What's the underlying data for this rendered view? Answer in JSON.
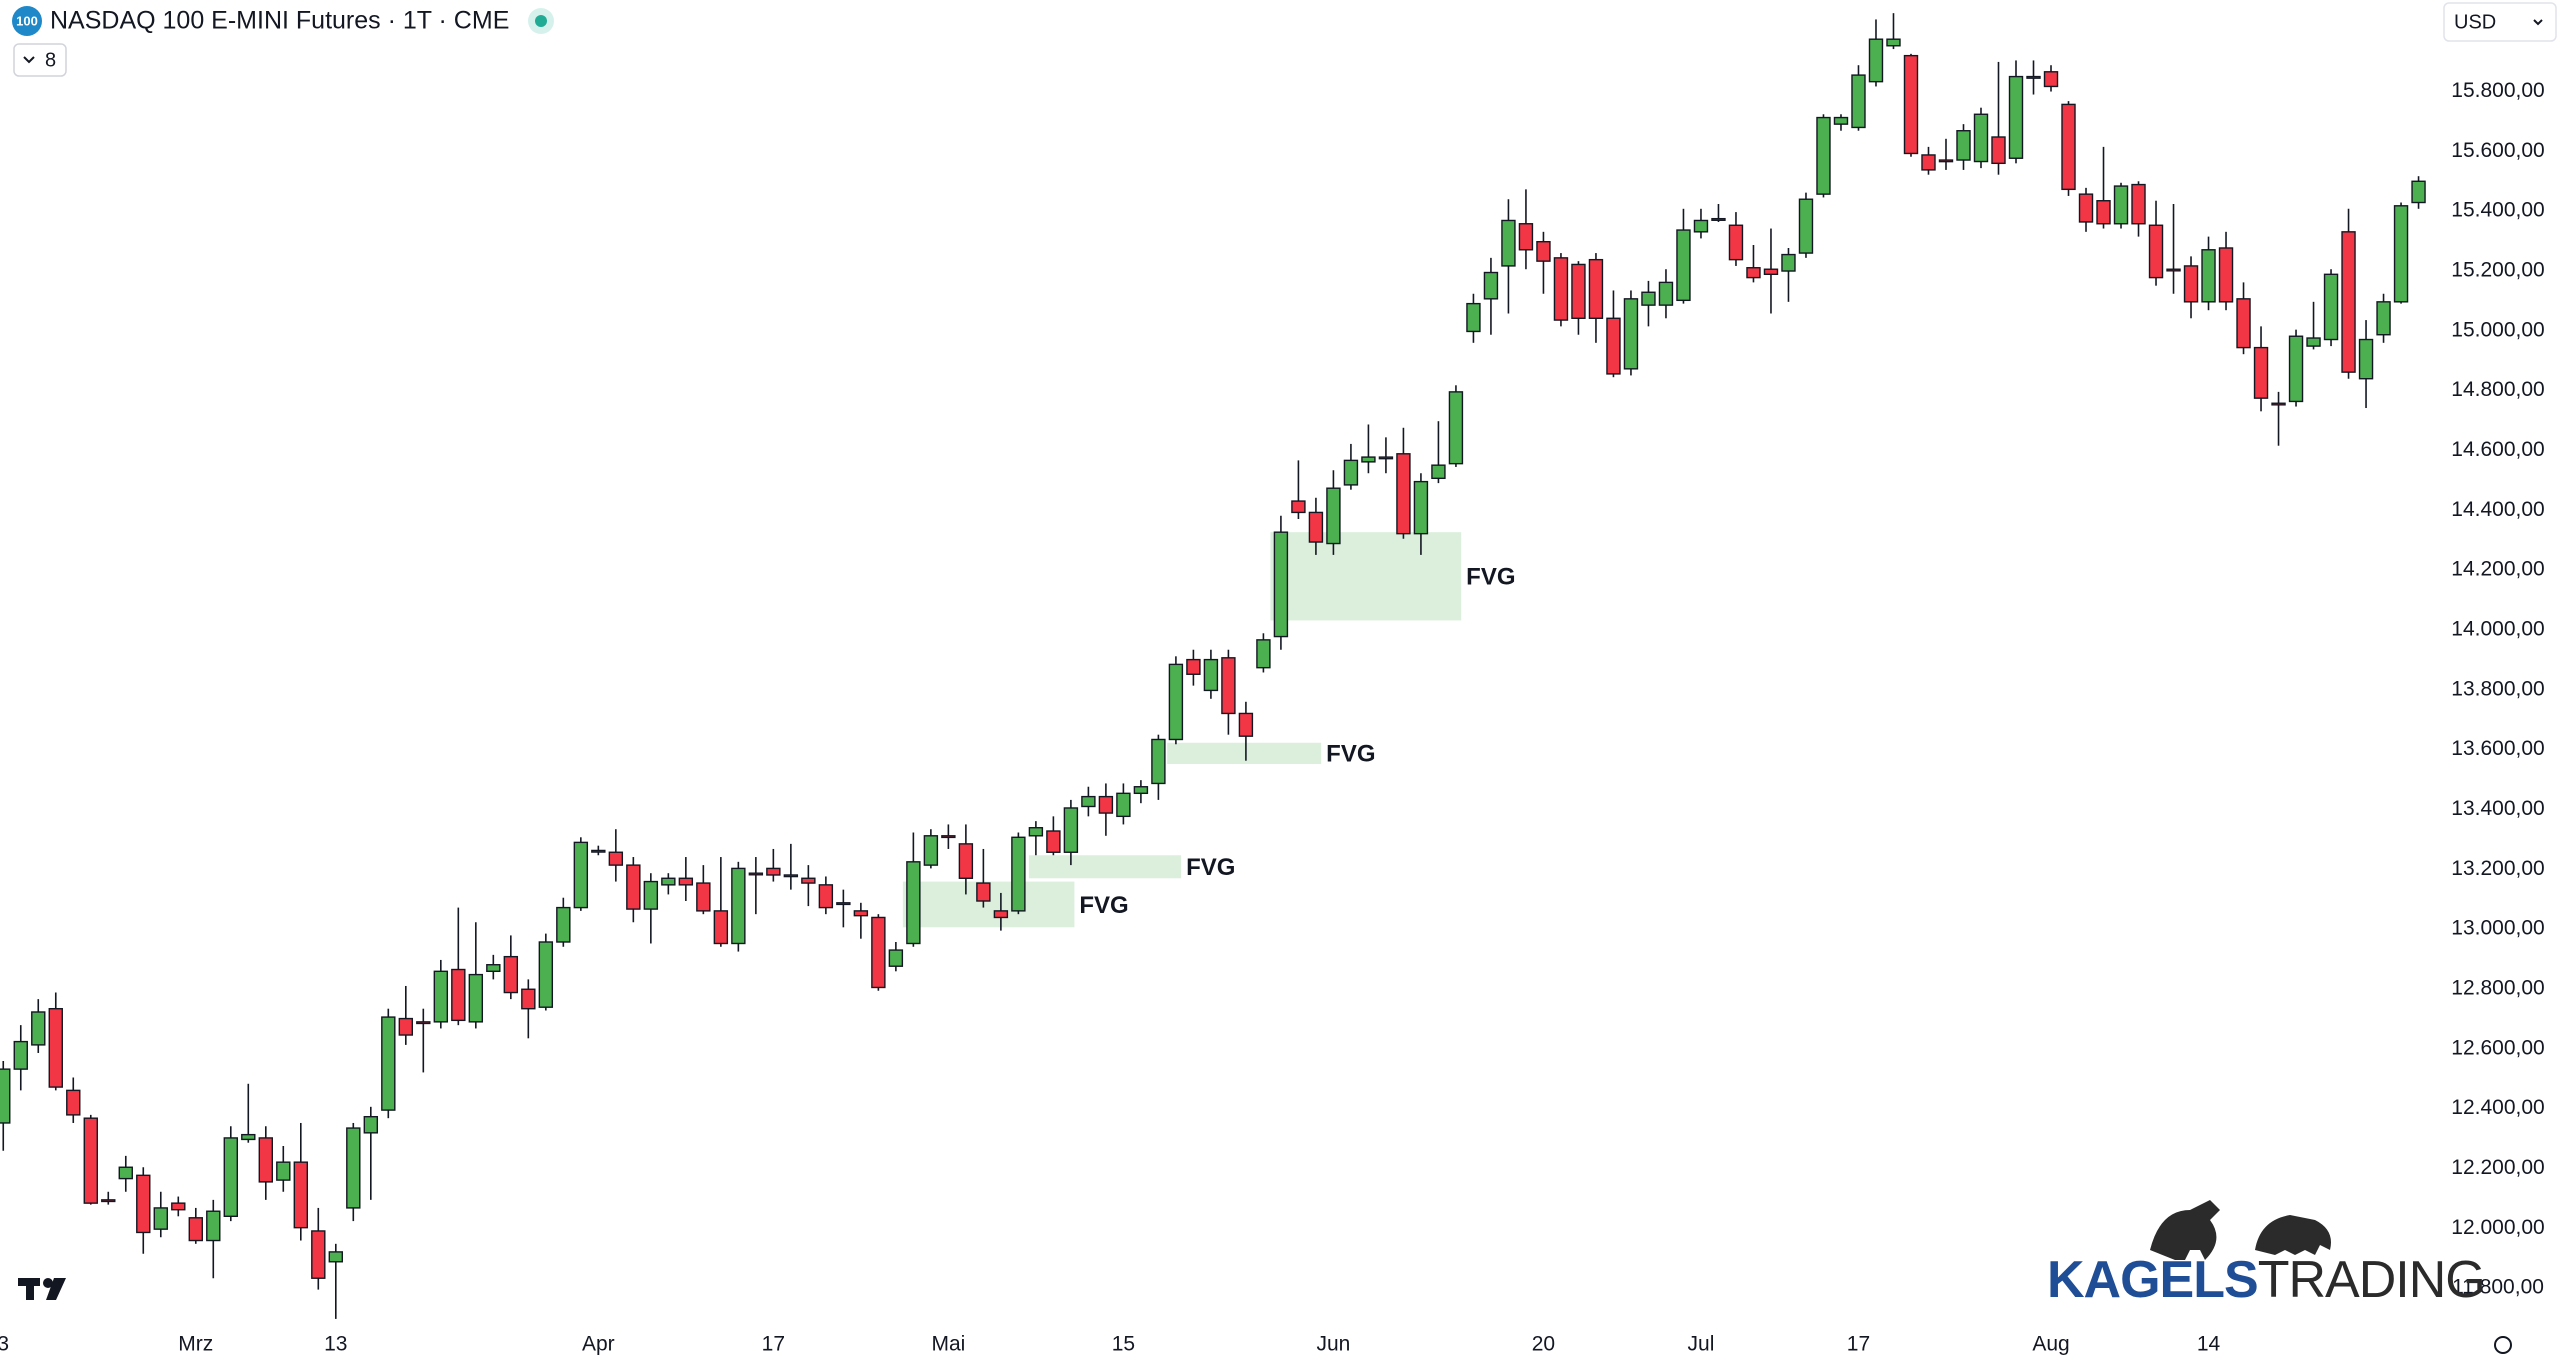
{
  "chart_data": {
    "type": "candlestick",
    "badge": "100",
    "title": "NASDAQ 100 E-MINI Futures · 1T · CME",
    "indicator_count": 8,
    "currency": "USD",
    "watermark": [
      "KAGELS",
      "TRADING"
    ],
    "up_color": "#4caf50",
    "down_color": "#f23645",
    "zone_color": "#d6ecd7",
    "grid": false,
    "categories": [
      "3",
      null,
      null,
      null,
      null,
      null,
      null,
      null,
      null,
      null,
      null,
      "Mrz",
      null,
      null,
      null,
      null,
      null,
      null,
      null,
      "13",
      null,
      null,
      null,
      null,
      null,
      null,
      null,
      null,
      null,
      null,
      null,
      null,
      null,
      null,
      "Apr",
      null,
      null,
      null,
      null,
      null,
      null,
      null,
      null,
      null,
      "17",
      null,
      null,
      null,
      null,
      null,
      null,
      null,
      null,
      null,
      "Mai",
      null,
      null,
      null,
      null,
      null,
      null,
      null,
      null,
      null,
      "15",
      null,
      null,
      null,
      null,
      null,
      null,
      null,
      null,
      null,
      null,
      null,
      "Jun",
      null,
      null,
      null,
      null,
      null,
      null,
      null,
      null,
      null,
      null,
      null,
      "20",
      null,
      null,
      null,
      null,
      null,
      null,
      null,
      null,
      "Jul",
      null,
      null,
      null,
      null,
      null,
      null,
      null,
      null,
      "17",
      null,
      null,
      null,
      null,
      null,
      null,
      null,
      null,
      null,
      null,
      "Aug",
      null,
      null,
      null,
      null,
      null,
      null,
      null,
      null,
      "14",
      null,
      null,
      null,
      null,
      null,
      null,
      null,
      null,
      null,
      null,
      null,
      null
    ],
    "open": [
      12352,
      12532,
      12613,
      12734,
      12461,
      12368,
      12095,
      12166,
      12177,
      11997,
      12084,
      12035,
      11959,
      12040,
      12297,
      12302,
      12161,
      12221,
      11991,
      11888,
      12068,
      12319,
      12395,
      12701,
      12690,
      12690,
      12865,
      12690,
      12859,
      12908,
      12799,
      12739,
      12957,
      13072,
      13263,
      13257,
      13214,
      13067,
      13148,
      13170,
      13154,
      13061,
      12952,
      13187,
      13203,
      13181,
      13170,
      13148,
      13088,
      13061,
      13039,
      12876,
      12952,
      13214,
      13312,
      13285,
      13154,
      13061,
      13061,
      13312,
      13328,
      13257,
      13410,
      13443,
      13377,
      13454,
      13487,
      13634,
      13901,
      13798,
      13907,
      13721,
      13874,
      13978,
      14431,
      14393,
      14289,
      14485,
      14562,
      14578,
      14589,
      14322,
      14507,
      14556,
      14998,
      15107,
      15217,
      15358,
      15298,
      15244,
      15222,
      15238,
      15042,
      14873,
      15086,
      15086,
      15102,
      15331,
      15375,
      15353,
      15211,
      15206,
      15200,
      15260,
      15457,
      15691,
      15680,
      15833,
      15953,
      15920,
      15588,
      15571,
      15571,
      15566,
      15648,
      15577,
      15850,
      15866,
      15757,
      15457,
      15435,
      15358,
      15489,
      15353,
      15206,
      15217,
      15097,
      15277,
      15107,
      14944,
      14758,
      14764,
      14949,
      14971,
      15331,
      14840,
      14987,
      15097,
      15429
    ],
    "high": [
      12559,
      12679,
      12766,
      12788,
      12504,
      12379,
      12122,
      12242,
      12204,
      12122,
      12106,
      12068,
      12095,
      12341,
      12483,
      12341,
      12275,
      12352,
      12068,
      11948,
      12352,
      12406,
      12734,
      12810,
      12734,
      12897,
      13072,
      13023,
      12914,
      12979,
      12832,
      12985,
      13105,
      13307,
      13279,
      13334,
      13241,
      13187,
      13187,
      13241,
      13214,
      13241,
      13225,
      13241,
      13268,
      13285,
      13214,
      13176,
      13132,
      13088,
      13050,
      12957,
      13323,
      13334,
      13350,
      13350,
      13268,
      13121,
      13323,
      13361,
      13377,
      13432,
      13476,
      13487,
      13487,
      13498,
      13650,
      13912,
      13934,
      13934,
      13934,
      13760,
      13989,
      14382,
      14567,
      14442,
      14534,
      14622,
      14687,
      14644,
      14676,
      14524,
      14698,
      14818,
      15124,
      15244,
      15440,
      15473,
      15331,
      15260,
      15233,
      15260,
      15135,
      15135,
      15167,
      15206,
      15408,
      15408,
      15424,
      15397,
      15287,
      15342,
      15277,
      15462,
      15724,
      15724,
      15888,
      16041,
      16062,
      15926,
      15615,
      15642,
      15691,
      15746,
      15899,
      15904,
      15904,
      15888,
      15768,
      15478,
      15615,
      15495,
      15500,
      15435,
      15424,
      15249,
      15315,
      15331,
      15162,
      15015,
      14796,
      15004,
      15097,
      15206,
      15408,
      15036,
      15124,
      15429,
      15517
    ],
    "low": [
      12259,
      12461,
      12586,
      12461,
      12352,
      12079,
      12079,
      12122,
      11915,
      11970,
      12040,
      11948,
      11833,
      12024,
      12286,
      12095,
      12122,
      11959,
      11795,
      11697,
      12024,
      12095,
      12368,
      12613,
      12521,
      12668,
      12679,
      12668,
      12832,
      12766,
      12635,
      12728,
      12941,
      13061,
      13247,
      13159,
      13023,
      12952,
      13116,
      13094,
      13050,
      12941,
      12925,
      13050,
      13159,
      13132,
      13077,
      13050,
      13006,
      12968,
      12794,
      12859,
      12941,
      13203,
      13268,
      13116,
      13072,
      12995,
      13050,
      13247,
      13247,
      13214,
      13377,
      13312,
      13350,
      13421,
      13432,
      13618,
      13814,
      13770,
      13650,
      13563,
      13858,
      13934,
      14371,
      14251,
      14251,
      14469,
      14524,
      14524,
      14305,
      14251,
      14491,
      14545,
      14960,
      14987,
      15058,
      15206,
      15124,
      15015,
      14987,
      14960,
      14845,
      14851,
      15015,
      15042,
      15091,
      15309,
      15364,
      15217,
      15162,
      15058,
      15097,
      15244,
      15446,
      15669,
      15669,
      15817,
      15942,
      15582,
      15522,
      15538,
      15538,
      15544,
      15522,
      15560,
      15790,
      15800,
      15451,
      15331,
      15342,
      15342,
      15315,
      15151,
      15124,
      15042,
      15069,
      15069,
      14922,
      14731,
      14616,
      14747,
      14938,
      14949,
      14840,
      14742,
      14960,
      15091,
      15408
    ],
    "close": [
      12532,
      12624,
      12723,
      12472,
      12379,
      12084,
      12090,
      12204,
      11986,
      12068,
      12062,
      11959,
      12057,
      12302,
      12313,
      12155,
      12221,
      12002,
      11833,
      11921,
      12335,
      12373,
      12706,
      12646,
      12685,
      12859,
      12695,
      12848,
      12881,
      12788,
      12734,
      12957,
      13072,
      13290,
      13258,
      13214,
      13067,
      13159,
      13170,
      13148,
      13061,
      12952,
      13203,
      13182,
      13181,
      13176,
      13154,
      13072,
      13083,
      13045,
      12805,
      12930,
      13225,
      13312,
      13307,
      13170,
      13094,
      13039,
      13307,
      13339,
      13257,
      13405,
      13443,
      13388,
      13454,
      13476,
      13634,
      13885,
      13852,
      13901,
      13721,
      13645,
      13967,
      14327,
      14393,
      14294,
      14474,
      14567,
      14578,
      14573,
      14322,
      14496,
      14551,
      14796,
      15091,
      15195,
      15369,
      15271,
      15233,
      15036,
      15042,
      15042,
      14856,
      15107,
      15129,
      15162,
      15337,
      15369,
      15370,
      15238,
      15178,
      15189,
      15255,
      15440,
      15713,
      15713,
      15855,
      15975,
      15975,
      15593,
      15538,
      15566,
      15669,
      15724,
      15560,
      15850,
      15845,
      15817,
      15473,
      15364,
      15358,
      15484,
      15358,
      15178,
      15201,
      15097,
      15271,
      15097,
      14944,
      14775,
      14753,
      14982,
      14976,
      15189,
      14862,
      14971,
      15097,
      15418,
      15500
    ],
    "zones": [
      {
        "text": "FVG",
        "low": 13006,
        "high": 13159
      },
      {
        "text": "FVG",
        "low": 13170,
        "high": 13247
      },
      {
        "text": "FVG",
        "low": 13552,
        "high": 13623
      },
      {
        "text": "FVG",
        "low": 14032,
        "high": 14327
      }
    ],
    "ylim": [
      11690,
      16106
    ],
    "yticks": [
      {
        "value": 11800,
        "label": "11.800,00"
      },
      {
        "value": 12000,
        "label": "12.000,00"
      },
      {
        "value": 12200,
        "label": "12.200,00"
      },
      {
        "value": 12400,
        "label": "12.400,00"
      },
      {
        "value": 12600,
        "label": "12.600,00"
      },
      {
        "value": 12800,
        "label": "12.800,00"
      },
      {
        "value": 13000,
        "label": "13.000,00"
      },
      {
        "value": 13200,
        "label": "13.200,00"
      },
      {
        "value": 13400,
        "label": "13.400,00"
      },
      {
        "value": 13600,
        "label": "13.600,00"
      },
      {
        "value": 13800,
        "label": "13.800,00"
      },
      {
        "value": 14000,
        "label": "14.000,00"
      },
      {
        "value": 14200,
        "label": "14.200,00"
      },
      {
        "value": 14400,
        "label": "14.400,00"
      },
      {
        "value": 14600,
        "label": "14.600,00"
      },
      {
        "value": 14800,
        "label": "14.800,00"
      },
      {
        "value": 15000,
        "label": "15.000,00"
      },
      {
        "value": 15200,
        "label": "15.200,00"
      },
      {
        "value": 15400,
        "label": "15.400,00"
      },
      {
        "value": 15600,
        "label": "15.600,00"
      },
      {
        "value": 15800,
        "label": "15.800,00"
      }
    ]
  }
}
